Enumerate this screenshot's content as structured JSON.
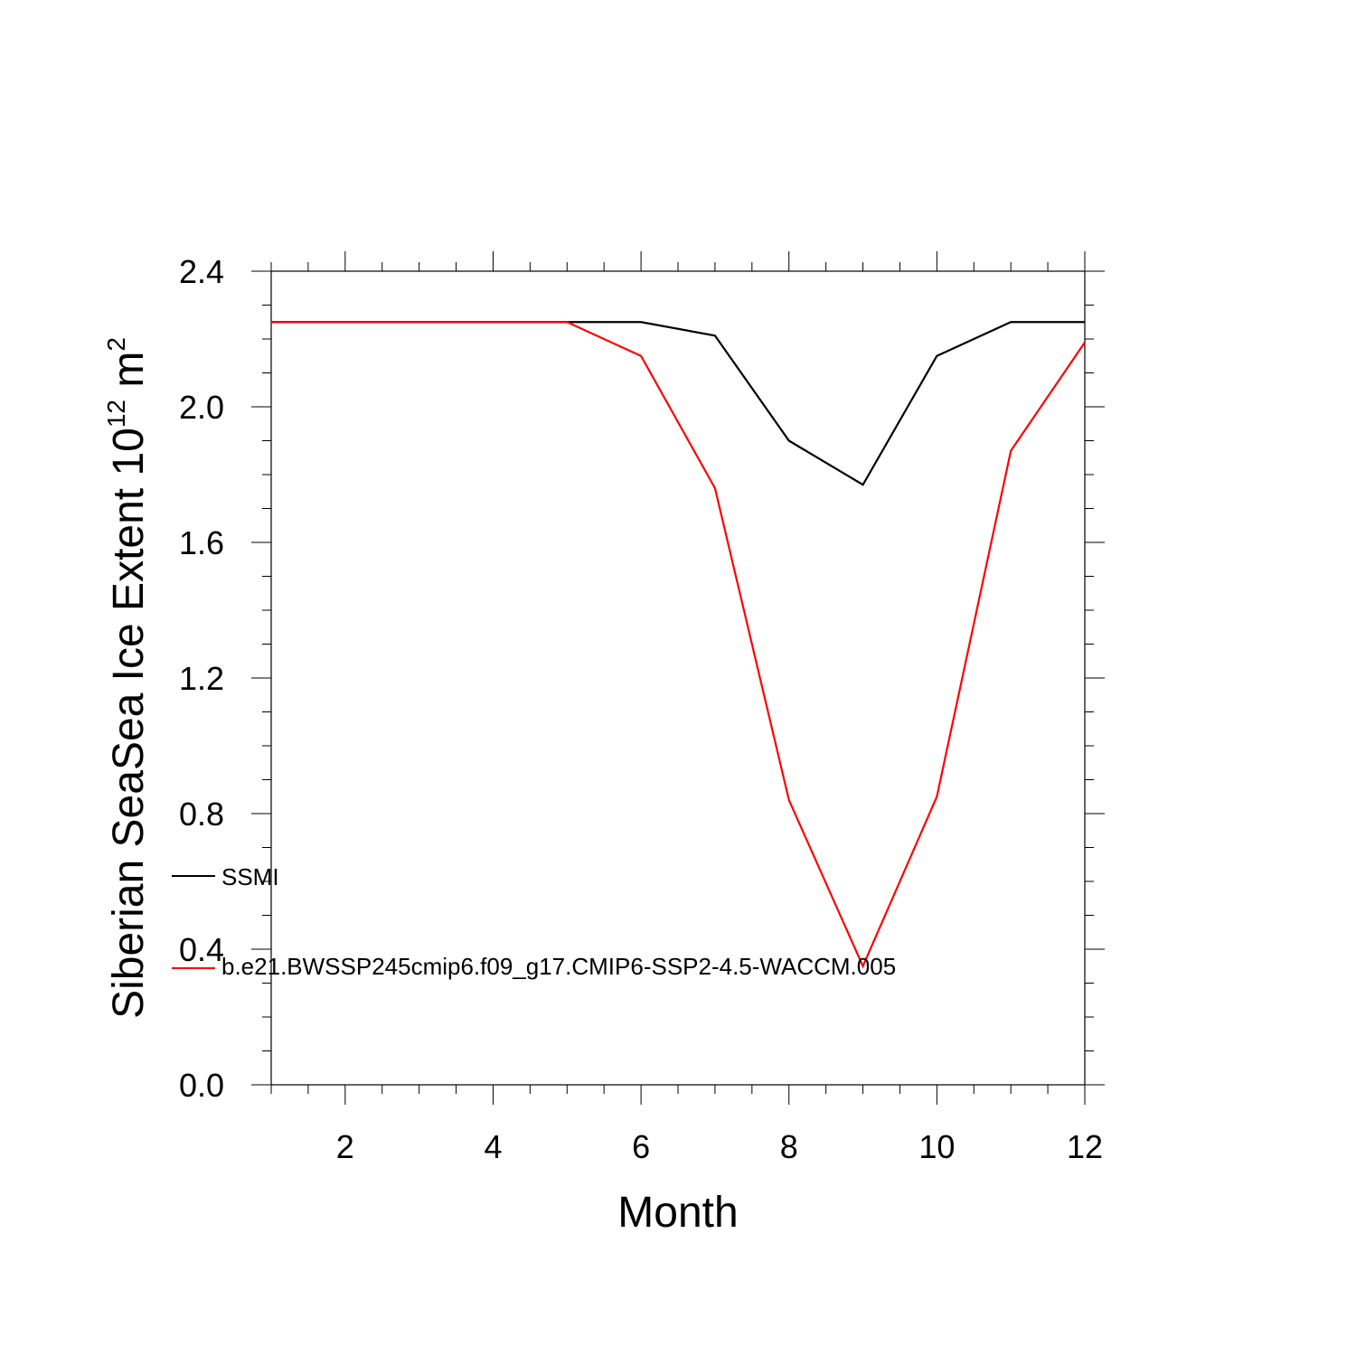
{
  "chart_data": {
    "type": "line",
    "title": "",
    "xlabel": "Month",
    "ylabel_main": "Siberian SeaSea Ice Extent 10",
    "ylabel_sup": "12",
    "ylabel_unit": " m",
    "ylabel_unit_sup": "2",
    "xlim": [
      1,
      12
    ],
    "ylim": [
      0.0,
      2.4
    ],
    "xticks": [
      2,
      4,
      6,
      8,
      10,
      12
    ],
    "xtick_labels": [
      "2",
      "4",
      "6",
      "8",
      "10",
      "12"
    ],
    "yticks": [
      0.0,
      0.4,
      0.8,
      1.2,
      1.6,
      2.0,
      2.4
    ],
    "ytick_labels": [
      "0.0",
      "0.4",
      "0.8",
      "1.2",
      "1.6",
      "2.0",
      "2.4"
    ],
    "grid": false,
    "legend_position": "inside-left",
    "x": [
      1,
      2,
      3,
      4,
      5,
      6,
      7,
      8,
      9,
      10,
      11,
      12
    ],
    "series": [
      {
        "name": "SSMI",
        "color": "#000000",
        "values": [
          2.25,
          2.25,
          2.25,
          2.25,
          2.25,
          2.25,
          2.21,
          1.9,
          1.77,
          2.15,
          2.25,
          2.25
        ]
      },
      {
        "name": "b.e21.BWSSP245cmip6.f09_g17.CMIP6-SSP2-4.5-WACCM.005",
        "color": "#ff0000",
        "values": [
          2.25,
          2.25,
          2.25,
          2.25,
          2.25,
          2.15,
          1.76,
          0.84,
          0.35,
          0.85,
          1.87,
          2.19
        ]
      }
    ]
  }
}
